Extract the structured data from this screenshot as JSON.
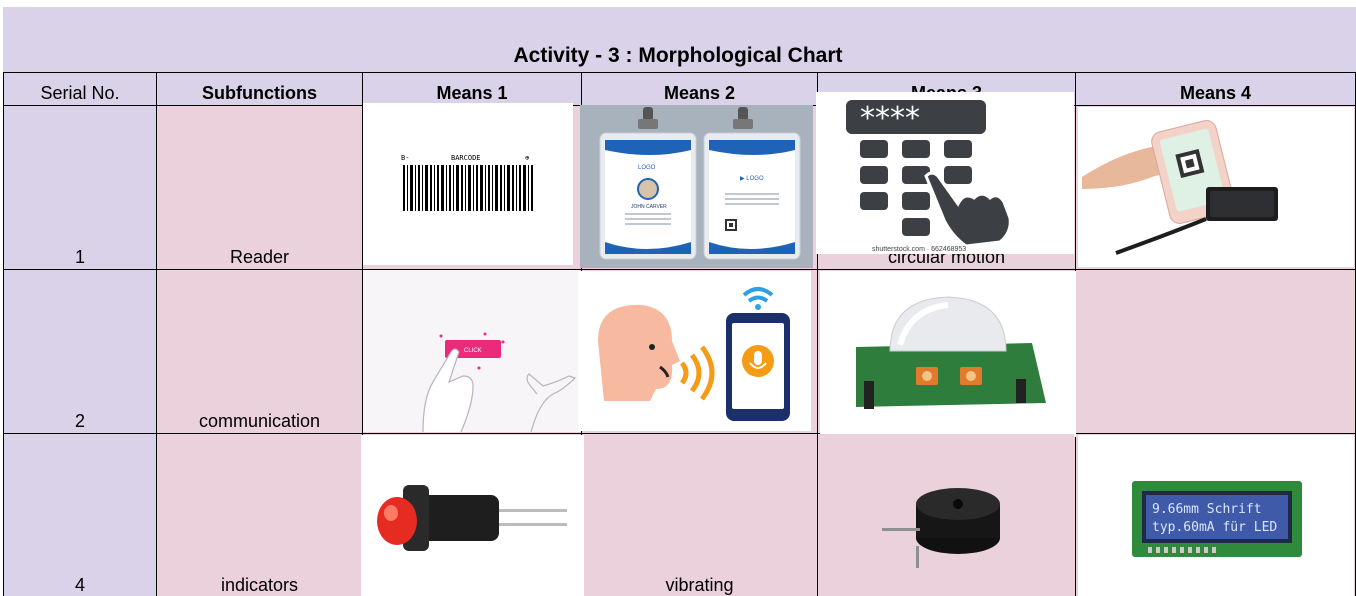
{
  "title": "Activity - 3 : Morphological Chart",
  "headers": {
    "serial": "Serial No.",
    "subfunctions": "Subfunctions",
    "means1": "Means 1",
    "means2": "Means 2",
    "means3": "Means 3",
    "means4": "Means 4"
  },
  "rows": [
    {
      "serial": "1",
      "subfunction": "Reader",
      "means3_text": "circular motion"
    },
    {
      "serial": "2",
      "subfunction": "communication"
    },
    {
      "serial": "4",
      "subfunction": "indicators",
      "means2_text": "vibrating"
    }
  ],
  "images": {
    "barcode_label_left": "B-",
    "barcode_label_mid": "BARCODE",
    "barcode_label_right": "⊕",
    "id_logo": "LOGO",
    "id_name": "JOHN CARVER",
    "keypad_stars": "****",
    "keypad_watermark": "shutterstock.com · 662468953",
    "click_label": "CLICK",
    "lcd_line1": "9.66mm Schrift",
    "lcd_line2": "typ.60mA für LED"
  },
  "colors": {
    "header_band": "#d9d2e9",
    "pink_cell": "#ead1dc",
    "lavender_cell": "#d9d2e9"
  }
}
